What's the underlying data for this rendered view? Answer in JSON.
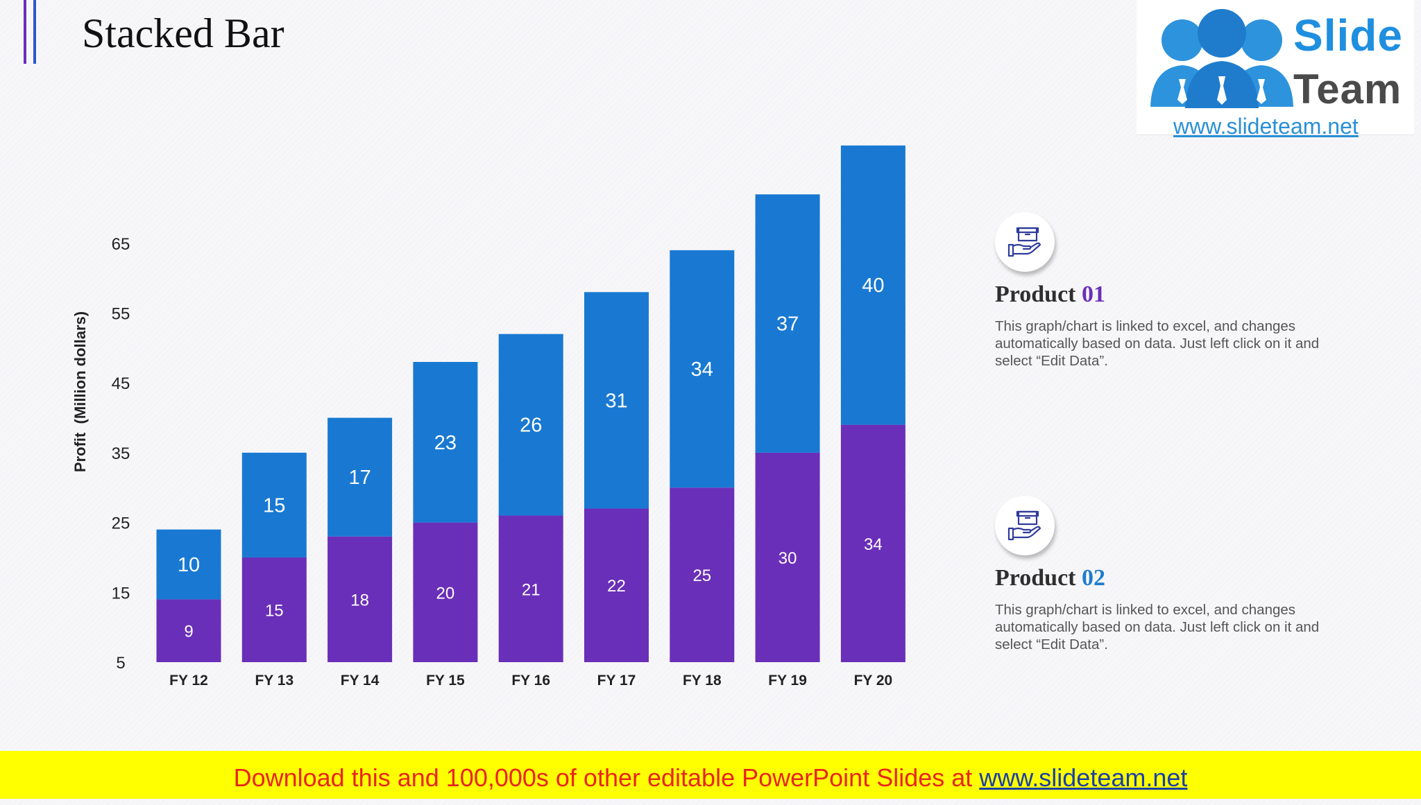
{
  "title": "Stacked Bar",
  "logo": {
    "line1": "Slide",
    "line2": "Team",
    "url": "www.slideteam.net"
  },
  "colors": {
    "product01": "#6a2fb8",
    "product02": "#1979d2",
    "accent": "#6a2fb8"
  },
  "chart_data": {
    "type": "bar",
    "stacked": true,
    "categories": [
      "FY 12",
      "FY 13",
      "FY 14",
      "FY 15",
      "FY 16",
      "FY 17",
      "FY 18",
      "FY 19",
      "FY 20"
    ],
    "series": [
      {
        "name": "Product 01",
        "color": "#6a2fb8",
        "values": [
          9,
          15,
          18,
          20,
          21,
          22,
          25,
          30,
          34
        ]
      },
      {
        "name": "Product 02",
        "color": "#1979d2",
        "values": [
          10,
          15,
          17,
          23,
          26,
          31,
          34,
          37,
          40
        ]
      }
    ],
    "xlabel": "",
    "ylabel": "Profit  (Million dollars)",
    "yticks": [
      5,
      15,
      25,
      35,
      45,
      55,
      65
    ],
    "ylim": [
      5,
      74
    ],
    "grid": false,
    "legend": "none"
  },
  "products": [
    {
      "label": "Product",
      "number": "01",
      "icon": "box-on-hand-icon",
      "description": "This graph/chart is linked to excel, and changes automatically based on data. Just left click on it and select “Edit Data”."
    },
    {
      "label": "Product",
      "number": "02",
      "icon": "box-on-hand-icon",
      "description": "This graph/chart is linked to excel, and changes automatically based on data. Just left click on it and select “Edit Data”."
    }
  ],
  "banner": {
    "text": "Download this and 100,000s of other editable PowerPoint Slides at ",
    "link": "www.slideteam.net"
  }
}
